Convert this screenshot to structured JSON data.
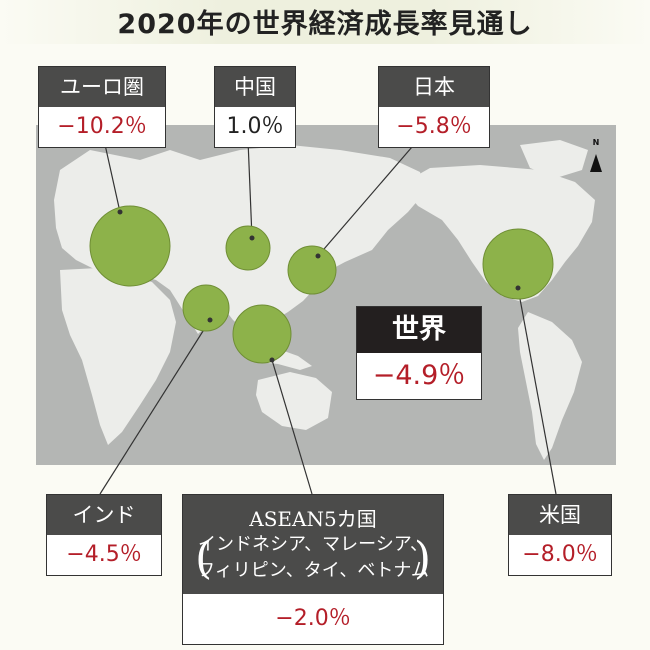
{
  "title": "2020年の世界経済成長率見通し",
  "north_label": "N",
  "colors": {
    "negative": "#b41e28",
    "label_bg": "#4b4b4a",
    "map_sea": "#b4b6b4",
    "map_land": "#ecedea",
    "bubble": "#8db24a"
  },
  "regions": {
    "eurozone": {
      "label": "ユーロ圏",
      "value": "−10.2％"
    },
    "china": {
      "label": "中国",
      "value": "1.0％"
    },
    "japan": {
      "label": "日本",
      "value": "−5.8％"
    },
    "world": {
      "label": "世界",
      "value": "−4.9％"
    },
    "india": {
      "label": "インド",
      "value": "−4.5％"
    },
    "asean": {
      "label": "ASEAN5カ国",
      "members_line1": "インドネシア、マレーシア、",
      "members_line2": "フィリピン、タイ、ベトナム",
      "value": "−2.0％"
    },
    "usa": {
      "label": "米国",
      "value": "−8.0％"
    }
  }
}
